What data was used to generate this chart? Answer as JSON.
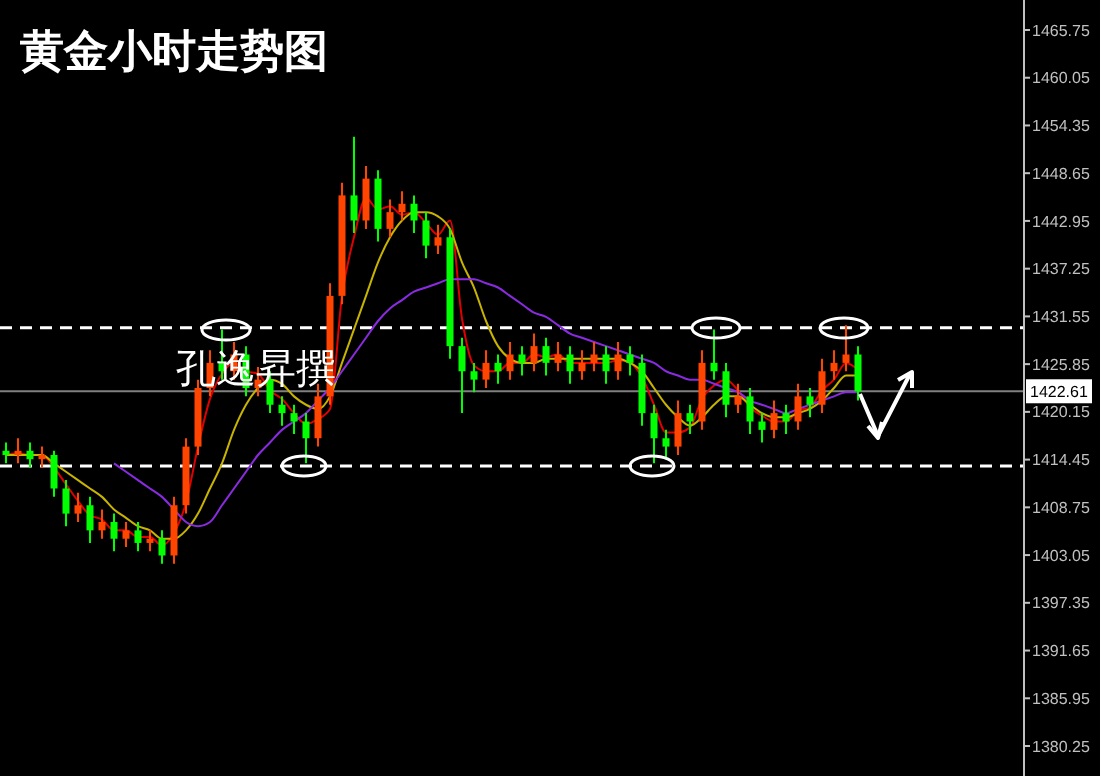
{
  "chart_data": {
    "type": "candlestick",
    "title": "黄金小时走势图",
    "annotations": [
      "孔逸昇撰"
    ],
    "categories": [
      null,
      null,
      null,
      null,
      null,
      null,
      null,
      null,
      null,
      null,
      null,
      null,
      null,
      null,
      null,
      null,
      null,
      null,
      null,
      null,
      null,
      null,
      null,
      null,
      null,
      null,
      null,
      null,
      null,
      null,
      null,
      null,
      null,
      null,
      null,
      null,
      null,
      null,
      null,
      null,
      null,
      null,
      null,
      null,
      null,
      null,
      null,
      null,
      null,
      null,
      null,
      null,
      null,
      null,
      null,
      null,
      null,
      null,
      null,
      null,
      null,
      null,
      null,
      null,
      null,
      null,
      null,
      null,
      null,
      null,
      null,
      null
    ],
    "colors": [
      "#00ff00",
      "#ff4500",
      "#00ff00",
      "#ff4500",
      "#00ff00",
      "#00ff00",
      "#ff4500",
      "#00ff00",
      "#ff4500",
      "#00ff00",
      "#ff4500",
      "#00ff00",
      "#ff4500",
      "#00ff00",
      "#ff4500",
      "#ff4500",
      "#ff4500",
      "#ff4500",
      "#00ff00",
      "#ff4500",
      "#00ff00",
      "#ff4500",
      "#00ff00",
      "#00ff00",
      "#00ff00",
      "#00ff00",
      "#ff4500",
      "#ff4500",
      "#ff4500",
      "#00ff00",
      "#ff4500",
      "#00ff00",
      "#ff4500",
      "#ff4500",
      "#00ff00",
      "#00ff00",
      "#ff4500",
      "#00ff00",
      "#00ff00",
      "#00ff00",
      "#ff4500",
      "#00ff00",
      "#ff4500",
      "#00ff00",
      "#ff4500",
      "#00ff00",
      "#ff4500",
      "#00ff00",
      "#ff4500",
      "#ff4500",
      "#00ff00",
      "#ff4500",
      "#00ff00",
      "#00ff00",
      "#00ff00",
      "#00ff00",
      "#ff4500",
      "#00ff00",
      "#ff4500",
      "#00ff00",
      "#00ff00",
      "#ff4500",
      "#00ff00",
      "#00ff00",
      "#ff4500",
      "#00ff00",
      "#ff4500",
      "#00ff00",
      "#ff4500",
      "#ff4500",
      "#ff4500",
      "#00ff00"
    ],
    "ohlc": [
      [
        1415.5,
        1416.5,
        1414,
        1415
      ],
      [
        1415,
        1417,
        1414,
        1415.5
      ],
      [
        1415.5,
        1416.5,
        1413.5,
        1414.5
      ],
      [
        1414.5,
        1416,
        1413.5,
        1415
      ],
      [
        1415,
        1415.5,
        1410,
        1411
      ],
      [
        1411,
        1412,
        1406.5,
        1408
      ],
      [
        1408,
        1410.5,
        1407,
        1409
      ],
      [
        1409,
        1410,
        1404.5,
        1406
      ],
      [
        1406,
        1408.5,
        1405,
        1407
      ],
      [
        1407,
        1408,
        1403.5,
        1405
      ],
      [
        1405,
        1407,
        1404,
        1406
      ],
      [
        1406,
        1407,
        1403.5,
        1404.5
      ],
      [
        1404.5,
        1406,
        1403.5,
        1405
      ],
      [
        1405,
        1406,
        1402,
        1403
      ],
      [
        1403,
        1410,
        1402,
        1409
      ],
      [
        1409,
        1417,
        1408,
        1416
      ],
      [
        1416,
        1424,
        1415,
        1423
      ],
      [
        1423,
        1427.5,
        1422,
        1426
      ],
      [
        1426,
        1430,
        1424,
        1425
      ],
      [
        1425,
        1428.5,
        1424,
        1427
      ],
      [
        1427,
        1428,
        1422,
        1423
      ],
      [
        1423,
        1425.5,
        1422,
        1424
      ],
      [
        1424,
        1425,
        1420,
        1421
      ],
      [
        1421,
        1422,
        1418.5,
        1420
      ],
      [
        1420,
        1421,
        1417.5,
        1419
      ],
      [
        1419,
        1420,
        1414,
        1417
      ],
      [
        1417,
        1423.5,
        1416,
        1422
      ],
      [
        1422,
        1435.5,
        1421,
        1434
      ],
      [
        1434,
        1447.5,
        1433,
        1446
      ],
      [
        1446,
        1453,
        1441.5,
        1443
      ],
      [
        1443,
        1449.5,
        1442,
        1448
      ],
      [
        1448,
        1449,
        1440.5,
        1442
      ],
      [
        1442,
        1445.5,
        1441,
        1444
      ],
      [
        1444,
        1446.5,
        1443,
        1445
      ],
      [
        1445,
        1446,
        1441.5,
        1443
      ],
      [
        1443,
        1444,
        1438.5,
        1440
      ],
      [
        1440,
        1442.5,
        1439,
        1441
      ],
      [
        1441,
        1442,
        1426.5,
        1428
      ],
      [
        1428,
        1429,
        1420,
        1425
      ],
      [
        1425,
        1426,
        1422.5,
        1424
      ],
      [
        1424,
        1427.5,
        1423,
        1426
      ],
      [
        1426,
        1427,
        1423.5,
        1425
      ],
      [
        1425,
        1428.5,
        1424,
        1427
      ],
      [
        1427,
        1428,
        1424.5,
        1426
      ],
      [
        1426,
        1429.5,
        1425,
        1428
      ],
      [
        1428,
        1429,
        1424.5,
        1426
      ],
      [
        1426,
        1428.5,
        1425,
        1427
      ],
      [
        1427,
        1428,
        1423.5,
        1425
      ],
      [
        1425,
        1427.5,
        1424,
        1426
      ],
      [
        1426,
        1428.5,
        1425,
        1427
      ],
      [
        1427,
        1428,
        1423.5,
        1425
      ],
      [
        1425,
        1428.5,
        1424,
        1427
      ],
      [
        1427,
        1428,
        1424.5,
        1426
      ],
      [
        1426,
        1427,
        1418.5,
        1420
      ],
      [
        1420,
        1421,
        1414,
        1417
      ],
      [
        1417,
        1418,
        1414.5,
        1416
      ],
      [
        1416,
        1421.5,
        1415,
        1420
      ],
      [
        1420,
        1421,
        1417.5,
        1419
      ],
      [
        1419,
        1427.5,
        1418,
        1426
      ],
      [
        1426,
        1430,
        1424,
        1425
      ],
      [
        1425,
        1426,
        1419.5,
        1421
      ],
      [
        1421,
        1423.5,
        1420,
        1422
      ],
      [
        1422,
        1423,
        1417.5,
        1419
      ],
      [
        1419,
        1420,
        1416.5,
        1418
      ],
      [
        1418,
        1421.5,
        1417,
        1420
      ],
      [
        1420,
        1421,
        1417.5,
        1419
      ],
      [
        1419,
        1423.5,
        1418,
        1422
      ],
      [
        1422,
        1423,
        1419.5,
        1421
      ],
      [
        1421,
        1426.5,
        1420,
        1425
      ],
      [
        1425,
        1427.5,
        1424,
        1426
      ],
      [
        1426,
        1430.5,
        1425,
        1427
      ],
      [
        1427,
        1428,
        1421.5,
        1422.6
      ]
    ],
    "series": [
      {
        "type": "line",
        "color": "#e00000",
        "values": [
          1415,
          1415.2,
          1415,
          1415,
          1413.5,
          1411.5,
          1409.5,
          1407.8,
          1407.3,
          1406,
          1406,
          1405.2,
          1405.2,
          1404.2,
          1405.7,
          1409.3,
          1416,
          1421.7,
          1424.7,
          1426,
          1425,
          1424.7,
          1422.7,
          1421.7,
          1420,
          1418.7,
          1419.3,
          1420.5,
          1434,
          1441,
          1445.7,
          1444.3,
          1444.7,
          1443.7,
          1444,
          1442.7,
          1441.3,
          1443,
          1431.3,
          1425.7,
          1425,
          1425,
          1426,
          1426,
          1427,
          1426.7,
          1427,
          1426,
          1426,
          1426,
          1426,
          1426.3,
          1426,
          1424.3,
          1421,
          1417.7,
          1417.7,
          1418.3,
          1421.7,
          1423.3,
          1424,
          1422.7,
          1420.7,
          1419.7,
          1419,
          1419,
          1420.3,
          1420.7,
          1422.7,
          1424,
          1426,
          1425.2
        ]
      },
      {
        "type": "line",
        "color": "#c8b400",
        "values": [
          1415,
          1415,
          1415,
          1415,
          1414,
          1413,
          1412,
          1411,
          1410,
          1408.5,
          1407.5,
          1406.5,
          1406,
          1405,
          1405,
          1406,
          1408,
          1411,
          1414,
          1418,
          1421,
          1423,
          1424,
          1423.5,
          1422,
          1421,
          1420.5,
          1422,
          1426,
          1430,
          1434,
          1438,
          1441,
          1443,
          1444,
          1444,
          1443.5,
          1442,
          1438,
          1435,
          1431,
          1428,
          1426.5,
          1426,
          1426,
          1426.5,
          1426.5,
          1426.5,
          1426.5,
          1426.5,
          1426.5,
          1426.5,
          1426,
          1425,
          1423,
          1421,
          1419.5,
          1418.5,
          1419.5,
          1421,
          1422,
          1422,
          1421,
          1420,
          1419.5,
          1419.5,
          1420,
          1420.5,
          1421.5,
          1423,
          1424.5,
          1424.5
        ]
      },
      {
        "type": "line",
        "color": "#8a2be2",
        "values": [
          null,
          null,
          null,
          null,
          null,
          null,
          null,
          null,
          null,
          1414,
          1413,
          1412,
          1411,
          1410,
          1408.5,
          1407,
          1406.5,
          1407,
          1409,
          1411,
          1413,
          1415,
          1416.5,
          1418,
          1419,
          1420,
          1421.5,
          1423,
          1425,
          1427,
          1429,
          1431,
          1432.5,
          1433.5,
          1434.5,
          1435,
          1435.5,
          1436,
          1436,
          1436,
          1435.5,
          1435,
          1434,
          1433,
          1432,
          1431.5,
          1430.5,
          1429.5,
          1429,
          1428.5,
          1428,
          1427.5,
          1427,
          1426.5,
          1426,
          1425,
          1424.5,
          1424,
          1424,
          1423.5,
          1423,
          1422.5,
          1421.5,
          1421,
          1420.5,
          1420,
          1420.5,
          1421,
          1421.5,
          1422,
          1422.5,
          1422.5
        ]
      }
    ],
    "ylim": [
      1376.67,
      1469.33
    ],
    "yticks": [
      1465.75,
      1460.05,
      1454.35,
      1448.65,
      1442.95,
      1437.25,
      1431.55,
      1425.85,
      1420.15,
      1414.45,
      1408.75,
      1403.05,
      1397.35,
      1391.65,
      1385.95,
      1380.25
    ],
    "ref_lines": [
      {
        "axis": "y",
        "value": 1430.2,
        "color": "#ffffff",
        "line_style": "dashed"
      },
      {
        "axis": "y",
        "value": 1413.7,
        "color": "#ffffff",
        "line_style": "dashed"
      },
      {
        "axis": "y",
        "value": 1422.61,
        "label": "1422.61",
        "color": "#808080",
        "line_style": "solid"
      }
    ]
  }
}
